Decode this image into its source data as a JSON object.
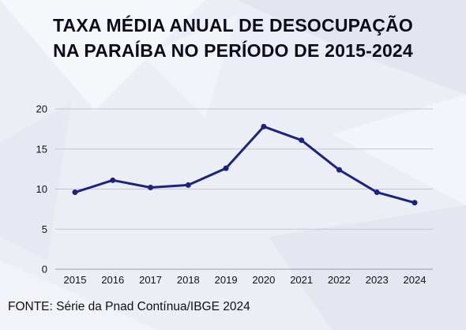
{
  "chart_data": {
    "type": "line",
    "title_line1": "TAXA MÉDIA ANUAL DE DESOCUPAÇÃO",
    "title_line2": "NA PARAÍBA NO PERÍODO DE 2015-2024",
    "categories": [
      "2015",
      "2016",
      "2017",
      "2018",
      "2019",
      "2020",
      "2021",
      "2022",
      "2023",
      "2024"
    ],
    "series": [
      {
        "values": [
          9.6,
          11.1,
          10.2,
          10.5,
          12.6,
          17.8,
          16.1,
          12.4,
          9.6,
          8.3
        ]
      }
    ],
    "yticks": [
      "0",
      "5",
      "10",
      "15",
      "20"
    ],
    "ylim": [
      0,
      20
    ],
    "xlabel": "",
    "ylabel": "",
    "grid": true,
    "line_color": "#1a2384",
    "source": "FONTE: Série da Pnad Contínua/IBGE 2024"
  }
}
